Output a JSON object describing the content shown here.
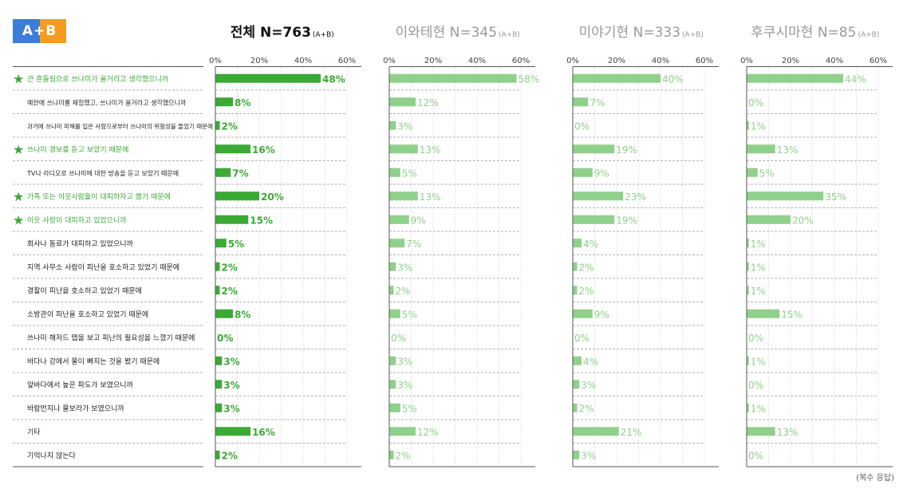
{
  "logo": {
    "text": "A+B",
    "color_a": "#3b7dd8",
    "color_b": "#f39c1f"
  },
  "note": "(복수 응답)",
  "colors": {
    "primary": "#3aaa35",
    "light": "#8fd18a",
    "star": "#3aaa35"
  },
  "chart_data": {
    "type": "bar",
    "orientation": "horizontal",
    "xlim": [
      0,
      60
    ],
    "ticks": [
      "0%",
      "20%",
      "40%",
      "60%"
    ],
    "categories": [
      {
        "label": "큰 흔들림으로 쓰나미가 올거라고 생각했으니까",
        "starred": true
      },
      {
        "label": "예전에 쓰나미를 체험했고, 쓰나미가 올거라고 생각했으니까",
        "starred": false
      },
      {
        "label": "과거에 쓰나미 피해를 입은 사람으로부터 쓰나미의 위험성을 들었기 때문에",
        "starred": false
      },
      {
        "label": "쓰나미 경보를 듣고 보았기 때문에",
        "starred": true
      },
      {
        "label": "TV나 라디오로 쓰나미에 대한 방송을 듣고 보았기 때문에",
        "starred": false
      },
      {
        "label": "가족 또는 이웃사람들이 대피하자고 했기 때문에",
        "starred": true
      },
      {
        "label": "이웃 사람이 대피하고 있었으니까",
        "starred": true
      },
      {
        "label": "회사나 동료가 대피하고 있었으니까",
        "starred": false
      },
      {
        "label": "지역 사무소 사람이 피난을 호소하고 있었기 때문에",
        "starred": false
      },
      {
        "label": "경찰이 피난을 호소하고 있었기 때문에",
        "starred": false
      },
      {
        "label": "소방관이 피난을 호소하고 있었기 때문에",
        "starred": false
      },
      {
        "label": "쓰나미 해저드 맵을 보고 피난의 필요성을 느꼈기 때문에",
        "starred": false
      },
      {
        "label": "바다나 강에서 물이 빠지는 것을 봤기 때문에",
        "starred": false
      },
      {
        "label": "앞바다에서 높은 파도가 보였으니까",
        "starred": false
      },
      {
        "label": "바람먼지나 물보라가 보였으니까",
        "starred": false
      },
      {
        "label": "기타",
        "starred": false
      },
      {
        "label": "기억나지 않는다",
        "starred": false
      }
    ],
    "panels": [
      {
        "title_main": "전체 N=763",
        "title_sub": "(A+B)",
        "style": "primary",
        "values": [
          48,
          8,
          2,
          16,
          7,
          20,
          15,
          5,
          2,
          2,
          8,
          0,
          3,
          3,
          3,
          16,
          2
        ]
      },
      {
        "title_main": "이와테현  N=345",
        "title_sub": "(A+B)",
        "style": "light",
        "values": [
          58,
          12,
          3,
          13,
          5,
          13,
          9,
          7,
          3,
          2,
          5,
          0,
          3,
          3,
          5,
          12,
          2
        ]
      },
      {
        "title_main": "미야기현  N=333",
        "title_sub": "(A+B)",
        "style": "light",
        "values": [
          40,
          7,
          0,
          19,
          9,
          23,
          19,
          4,
          2,
          2,
          9,
          0,
          4,
          3,
          2,
          21,
          3
        ]
      },
      {
        "title_main": "후쿠시마현  N=85",
        "title_sub": "(A+B)",
        "style": "light",
        "values": [
          44,
          0,
          1,
          13,
          5,
          35,
          20,
          1,
          1,
          1,
          15,
          0,
          1,
          0,
          1,
          13,
          0
        ]
      }
    ]
  }
}
